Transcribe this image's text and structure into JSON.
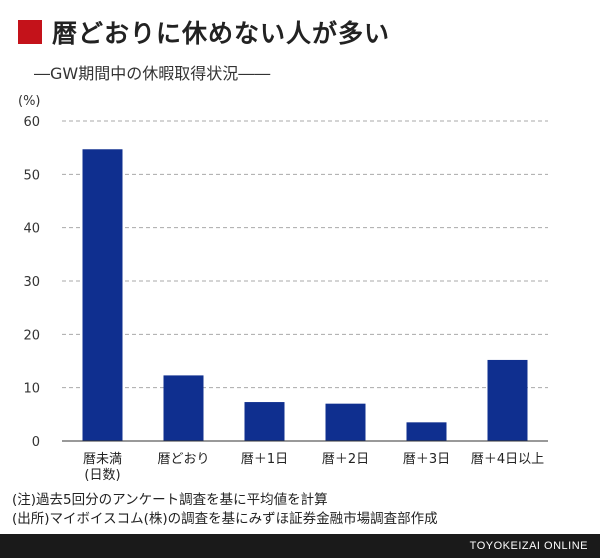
{
  "title": "暦どおりに休めない人が多い",
  "subtitle": "―GW期間中の休暇取得状況――",
  "chart_data": {
    "type": "bar",
    "y_unit": "(%)",
    "categories": [
      "暦未満",
      "暦どおり",
      "暦＋1日",
      "暦＋2日",
      "暦＋3日",
      "暦＋4日以上"
    ],
    "category_sublabels": [
      "(日数)",
      "",
      "",
      "",
      "",
      ""
    ],
    "values": [
      54.7,
      12.3,
      7.3,
      7.0,
      3.5,
      15.2
    ],
    "ylim": [
      0,
      60
    ],
    "yticks": [
      0,
      10,
      20,
      30,
      40,
      50,
      60
    ],
    "grid": true,
    "bar_color": "#0f2f8f"
  },
  "notes": [
    "(注)過去5回分のアンケート調査を基に平均値を計算",
    "(出所)マイボイスコム(株)の調査を基にみずほ証券金融市場調査部作成"
  ],
  "footer": "TOYOKEIZAI ONLINE"
}
